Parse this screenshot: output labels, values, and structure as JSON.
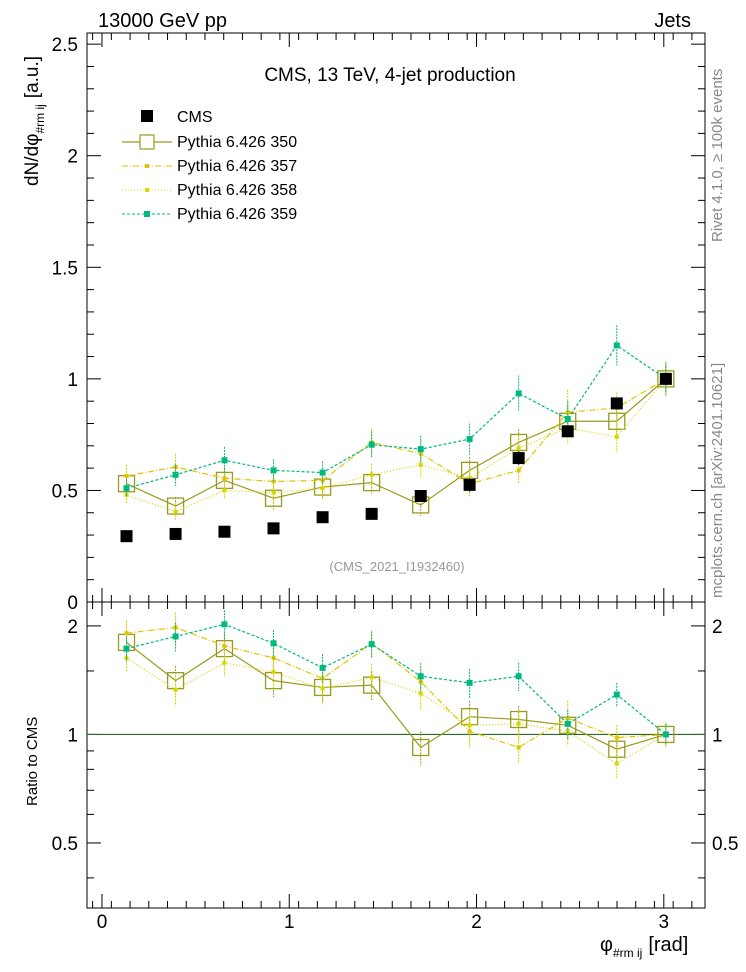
{
  "header": {
    "left": "13000 GeV pp",
    "right": "Jets"
  },
  "side_labels": {
    "rivet": "Rivet 4.1.0, ≥ 100k events",
    "mcplots": "mcplots.cern.ch [arXiv:2401.10621]"
  },
  "chart_data": {
    "type": "line",
    "title": "CMS, 13 TeV, 4-jet production",
    "analysis_tag": "(CMS_2021_I1932460)",
    "xlabel_main": "φ",
    "xlabel_sub": "#rm ij",
    "xlabel_unit": "[rad]",
    "ylabel_main": "dN/dφ",
    "ylabel_sub": "#rm ij",
    "ylabel_unit": "[a.u.]",
    "ratio_ylabel": "Ratio to CMS",
    "xlim": [
      -0.08,
      3.22
    ],
    "ylim_top": [
      0,
      2.55
    ],
    "ylim_ratio": [
      0.33,
      2.33
    ],
    "x_ticks": [
      "0",
      "1",
      "2",
      "3"
    ],
    "y_ticks_top": [
      "0",
      "0.5",
      "1",
      "1.5",
      "2",
      "2.5"
    ],
    "y_ticks_ratio": [
      "0.5",
      "1",
      "2"
    ],
    "x": [
      0.131,
      0.393,
      0.654,
      0.916,
      1.178,
      1.44,
      1.702,
      1.963,
      2.225,
      2.487,
      2.749,
      3.011
    ],
    "series": [
      {
        "name": "CMS",
        "color": "#000000",
        "style": "data",
        "values": [
          0.295,
          0.305,
          0.315,
          0.33,
          0.38,
          0.395,
          0.475,
          0.525,
          0.645,
          0.765,
          0.89,
          1.0
        ],
        "errors": [
          0.01,
          0.01,
          0.01,
          0.01,
          0.012,
          0.012,
          0.02,
          0.03,
          0.03,
          0.02,
          0.02,
          0.02
        ]
      },
      {
        "name": "Pythia 6.426 350",
        "color": "#9a9a1e",
        "style": "open-square-solid",
        "values": [
          0.53,
          0.43,
          0.545,
          0.465,
          0.515,
          0.535,
          0.435,
          0.59,
          0.715,
          0.81,
          0.81,
          1.0
        ],
        "errors": [
          0.04,
          0.04,
          0.05,
          0.05,
          0.05,
          0.05,
          0.05,
          0.06,
          0.06,
          0.07,
          0.07,
          0.06
        ]
      },
      {
        "name": "Pythia 6.426 357",
        "color": "#e0c400",
        "style": "dashdot",
        "values": [
          0.565,
          0.605,
          0.555,
          0.54,
          0.545,
          0.715,
          0.665,
          0.53,
          0.59,
          0.85,
          0.87,
          1.0
        ],
        "errors": [
          0.05,
          0.06,
          0.05,
          0.05,
          0.05,
          0.06,
          0.06,
          0.06,
          0.06,
          0.1,
          0.07,
          0.07
        ]
      },
      {
        "name": "Pythia 6.426 358",
        "color": "#d8d800",
        "style": "dotted",
        "values": [
          0.48,
          0.405,
          0.5,
          0.49,
          0.51,
          0.57,
          0.615,
          0.555,
          0.69,
          0.78,
          0.74,
          1.0
        ],
        "errors": [
          0.04,
          0.04,
          0.04,
          0.05,
          0.05,
          0.05,
          0.06,
          0.06,
          0.06,
          0.07,
          0.07,
          0.08
        ]
      },
      {
        "name": "Pythia 6.426 359",
        "color": "#00b880",
        "style": "dashed",
        "values": [
          0.51,
          0.57,
          0.635,
          0.59,
          0.58,
          0.705,
          0.685,
          0.73,
          0.935,
          0.82,
          1.15,
          1.0
        ],
        "errors": [
          0.04,
          0.05,
          0.06,
          0.05,
          0.05,
          0.06,
          0.06,
          0.07,
          0.08,
          0.08,
          0.09,
          0.07
        ]
      }
    ],
    "ratio_series": [
      {
        "name": "Pythia 6.426 350",
        "values": [
          1.8,
          1.41,
          1.73,
          1.41,
          1.35,
          1.37,
          0.92,
          1.12,
          1.1,
          1.06,
          0.91,
          1.0
        ],
        "errors": [
          0.12,
          0.14,
          0.16,
          0.14,
          0.13,
          0.13,
          0.1,
          0.12,
          0.1,
          0.09,
          0.08,
          0.06
        ]
      },
      {
        "name": "Pythia 6.426 357",
        "values": [
          1.91,
          1.98,
          1.76,
          1.63,
          1.43,
          1.79,
          1.4,
          1.02,
          0.92,
          1.11,
          0.98,
          1.0
        ],
        "errors": [
          0.16,
          0.2,
          0.16,
          0.15,
          0.13,
          0.15,
          0.13,
          0.1,
          0.09,
          0.13,
          0.08,
          0.07
        ]
      },
      {
        "name": "Pythia 6.426 358",
        "values": [
          1.63,
          1.33,
          1.58,
          1.49,
          1.34,
          1.44,
          1.3,
          1.06,
          1.07,
          1.02,
          0.83,
          1.0
        ],
        "errors": [
          0.14,
          0.13,
          0.13,
          0.15,
          0.13,
          0.13,
          0.13,
          0.11,
          0.1,
          0.09,
          0.08,
          0.08
        ]
      },
      {
        "name": "Pythia 6.426 359",
        "values": [
          1.73,
          1.87,
          2.02,
          1.79,
          1.53,
          1.78,
          1.45,
          1.39,
          1.45,
          1.07,
          1.29,
          1.0
        ],
        "errors": [
          0.14,
          0.17,
          0.19,
          0.16,
          0.14,
          0.15,
          0.13,
          0.13,
          0.13,
          0.1,
          0.1,
          0.07
        ]
      }
    ],
    "ratio_reference": 1
  }
}
